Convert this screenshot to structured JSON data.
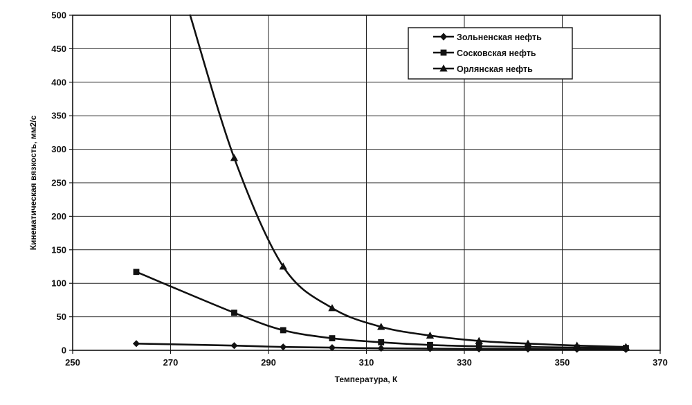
{
  "chart_data": {
    "type": "line",
    "title": "",
    "xlabel": "Температура, К",
    "ylabel": "Кинематическая вязкость, мм2/с",
    "xlim": [
      250,
      370
    ],
    "ylim": [
      0,
      500
    ],
    "x_ticks": [
      "250",
      "270",
      "290",
      "310",
      "330",
      "350",
      "370"
    ],
    "y_ticks": [
      "0",
      "50",
      "100",
      "150",
      "200",
      "250",
      "300",
      "350",
      "400",
      "450",
      "500"
    ],
    "grid": "horizontal and vertical",
    "legend_position": "top-right",
    "colors": {
      "series": "#111111",
      "grid": "#222222",
      "background": "#ffffff"
    },
    "series": [
      {
        "name": "Зольненская нефть",
        "marker": "diamond",
        "x": [
          263,
          283,
          293,
          303,
          313,
          323,
          333,
          343,
          353,
          363
        ],
        "y": [
          10,
          7,
          5,
          4,
          3,
          2.5,
          2,
          1.8,
          1.5,
          1.2
        ]
      },
      {
        "name": "Сосковская нефть",
        "marker": "square",
        "x": [
          263,
          283,
          293,
          303,
          313,
          323,
          333,
          343,
          353,
          363
        ],
        "y": [
          117,
          56,
          30,
          18,
          12,
          8,
          6,
          5,
          4,
          3.5
        ]
      },
      {
        "name": "Орлянская нефть",
        "marker": "triangle",
        "x": [
          274,
          283,
          293,
          303,
          313,
          323,
          333,
          343,
          353,
          363
        ],
        "y": [
          500,
          287,
          125,
          63,
          35,
          22,
          14,
          10,
          7,
          5
        ]
      }
    ]
  }
}
